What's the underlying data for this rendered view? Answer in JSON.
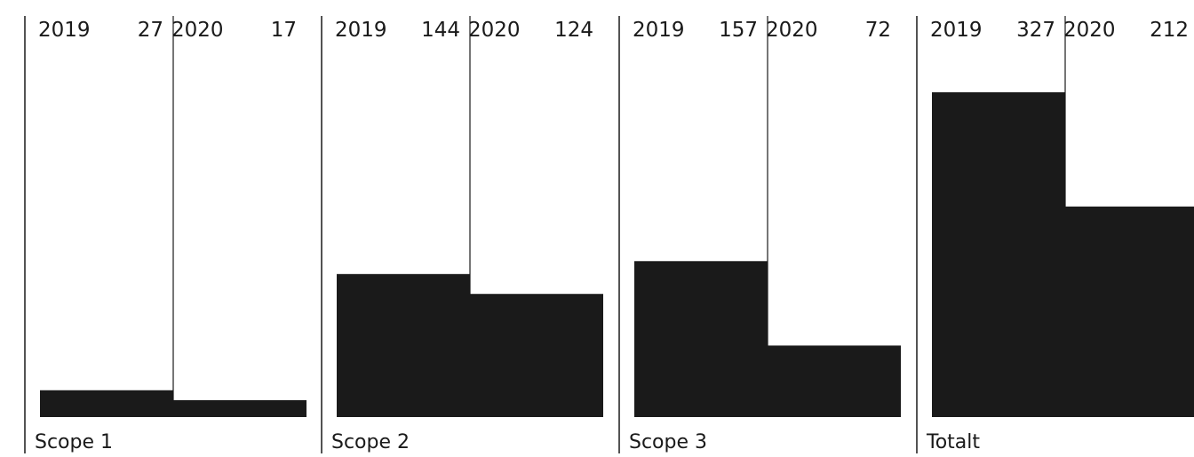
{
  "chart_data": {
    "type": "bar",
    "groups": [
      {
        "label": "Scope 1",
        "bars": [
          {
            "year": "2019",
            "value": 27
          },
          {
            "year": "2020",
            "value": 17
          }
        ]
      },
      {
        "label": "Scope 2",
        "bars": [
          {
            "year": "2019",
            "value": 144
          },
          {
            "year": "2020",
            "value": 124
          }
        ]
      },
      {
        "label": "Scope 3",
        "bars": [
          {
            "year": "2019",
            "value": 157
          },
          {
            "year": "2020",
            "value": 72
          }
        ]
      },
      {
        "label": "Totalt",
        "bars": [
          {
            "year": "2019",
            "value": 327
          },
          {
            "year": "2020",
            "value": 212
          }
        ]
      }
    ],
    "ylim": [
      0,
      350
    ],
    "grid": false,
    "bar_color": "#1a1a1a",
    "line_color": "#1a1a1a"
  }
}
